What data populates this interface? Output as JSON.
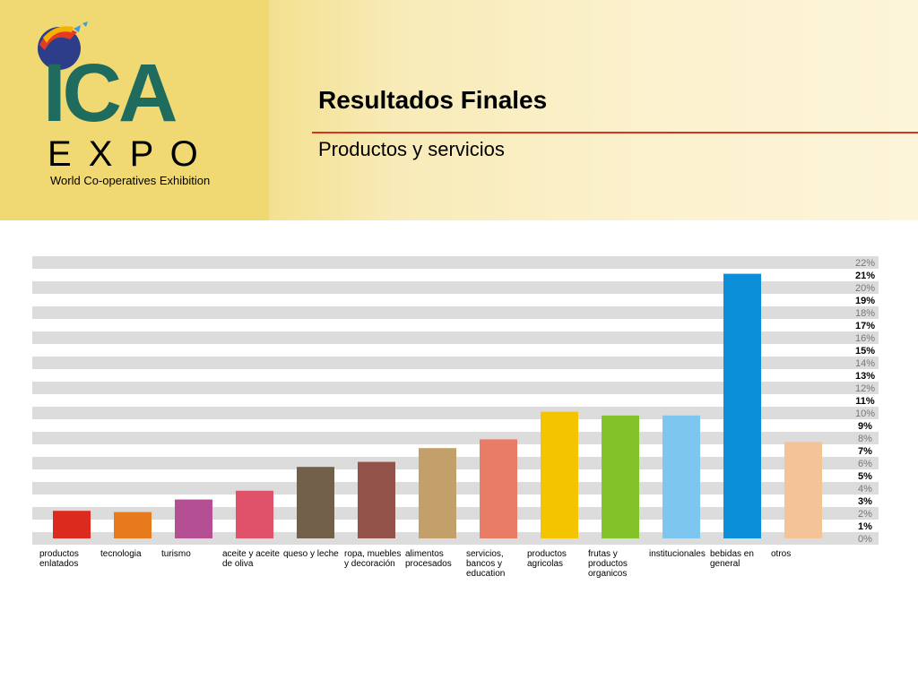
{
  "header": {
    "logo": {
      "mark": "ICA",
      "expo": "E X P O",
      "tagline": "World Co-operatives Exhibition"
    },
    "title": "Resultados Finales",
    "subtitle": "Productos y servicios"
  },
  "chart_data": {
    "type": "bar",
    "categories": [
      "productos enlatados",
      "tecnologia",
      "turismo",
      "aceite y aceite de oliva",
      "queso y leche",
      "ropa, muebles y decoración",
      "alimentos procesados",
      "servicios, bancos y education",
      "productos agricolas",
      "frutas y productos organicos",
      "institucionales",
      "bebidas en general",
      "otros"
    ],
    "values": [
      2.2,
      2.1,
      3.1,
      3.8,
      5.7,
      6.1,
      7.2,
      7.9,
      10.1,
      9.8,
      9.8,
      21.1,
      7.7
    ],
    "colors": [
      "#dc2a1e",
      "#e87a1e",
      "#b44f93",
      "#e0526a",
      "#72604b",
      "#93524a",
      "#c3a06a",
      "#e87c66",
      "#f5c400",
      "#84c22a",
      "#7cc6f0",
      "#0a8fd8",
      "#f5c398"
    ],
    "ylim": [
      0,
      22
    ],
    "yticks": [
      {
        "value": 0,
        "label": "0%"
      },
      {
        "value": 1,
        "label": "1%"
      },
      {
        "value": 2,
        "label": "2%"
      },
      {
        "value": 3,
        "label": "3%"
      },
      {
        "value": 4,
        "label": "4%"
      },
      {
        "value": 5,
        "label": "5%"
      },
      {
        "value": 6,
        "label": "6%"
      },
      {
        "value": 7,
        "label": "7%"
      },
      {
        "value": 8,
        "label": "8%"
      },
      {
        "value": 9,
        "label": "9%"
      },
      {
        "value": 10,
        "label": "10%"
      },
      {
        "value": 11,
        "label": "11%"
      },
      {
        "value": 12,
        "label": "12%"
      },
      {
        "value": 13,
        "label": "13%"
      },
      {
        "value": 14,
        "label": "14%"
      },
      {
        "value": 15,
        "label": "15%"
      },
      {
        "value": 16,
        "label": "16%"
      },
      {
        "value": 17,
        "label": "17%"
      },
      {
        "value": 18,
        "label": "18%"
      },
      {
        "value": 19,
        "label": "19%"
      },
      {
        "value": 20,
        "label": "20%"
      },
      {
        "value": 21,
        "label": "21%"
      },
      {
        "value": 22,
        "label": "22%"
      }
    ],
    "grid": true
  }
}
